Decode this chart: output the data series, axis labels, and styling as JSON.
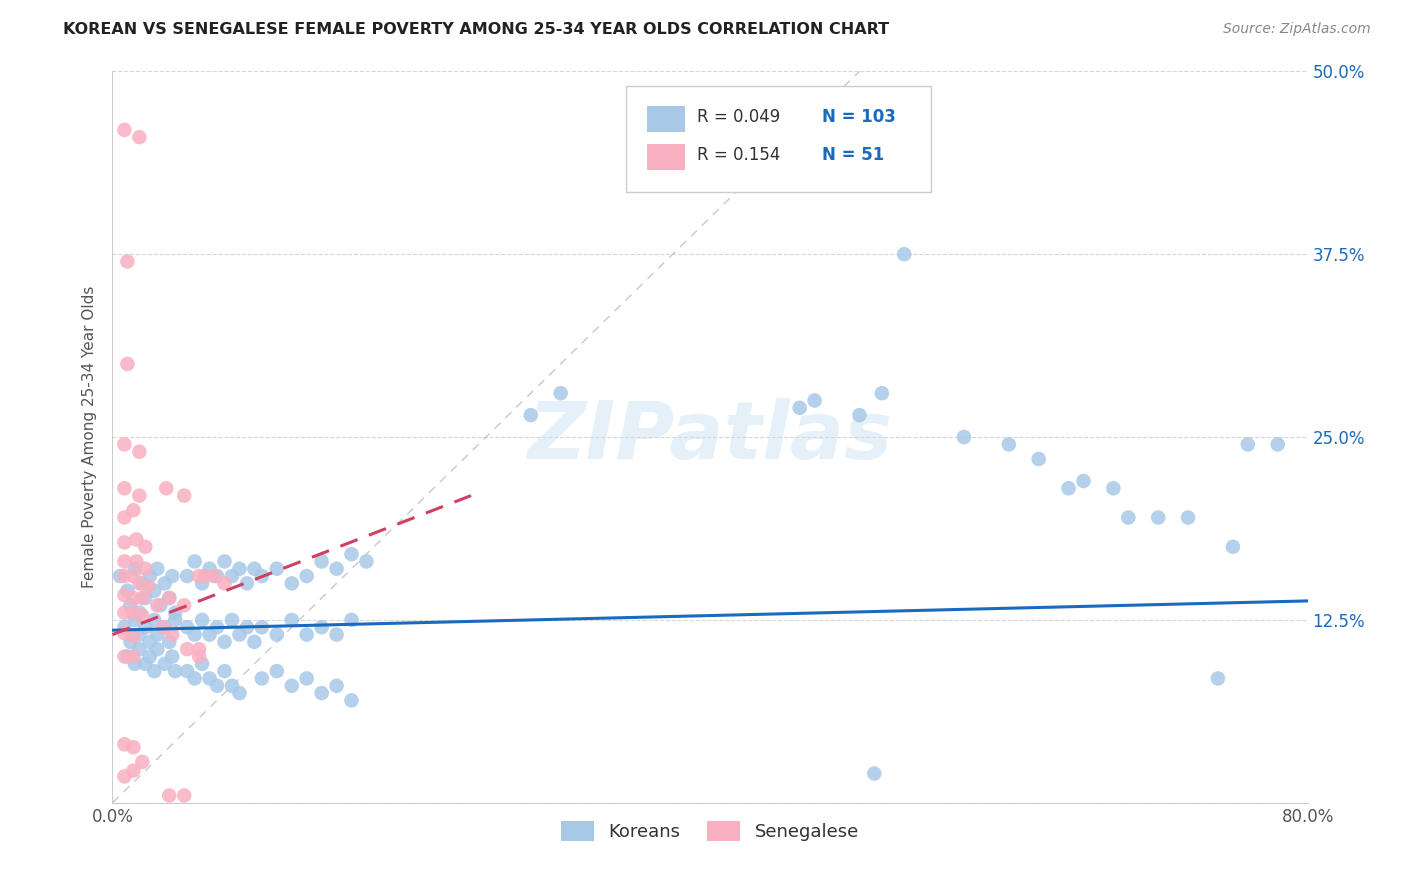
{
  "title": "KOREAN VS SENEGALESE FEMALE POVERTY AMONG 25-34 YEAR OLDS CORRELATION CHART",
  "source": "Source: ZipAtlas.com",
  "ylabel": "Female Poverty Among 25-34 Year Olds",
  "xlim": [
    0.0,
    0.8
  ],
  "ylim": [
    0.0,
    0.5
  ],
  "ytick_positions": [
    0.0,
    0.125,
    0.25,
    0.375,
    0.5
  ],
  "yticklabels_right": [
    "",
    "12.5%",
    "25.0%",
    "37.5%",
    "50.0%"
  ],
  "korean_R": "0.049",
  "korean_N": "103",
  "senegalese_R": "0.154",
  "senegalese_N": "51",
  "korean_color": "#a8c8e8",
  "senegalese_color": "#f8b0c0",
  "trendline_korean_color": "#1a6bbd",
  "trendline_senegalese_color": "#d04060",
  "legend_text_color": "#1a6bbd",
  "watermark": "ZIPatlas",
  "background_color": "#ffffff",
  "korean_scatter": [
    [
      0.005,
      0.155
    ],
    [
      0.01,
      0.145
    ],
    [
      0.012,
      0.135
    ],
    [
      0.015,
      0.16
    ],
    [
      0.018,
      0.13
    ],
    [
      0.02,
      0.15
    ],
    [
      0.022,
      0.14
    ],
    [
      0.025,
      0.155
    ],
    [
      0.028,
      0.145
    ],
    [
      0.03,
      0.16
    ],
    [
      0.032,
      0.135
    ],
    [
      0.035,
      0.15
    ],
    [
      0.038,
      0.14
    ],
    [
      0.04,
      0.155
    ],
    [
      0.042,
      0.13
    ],
    [
      0.008,
      0.12
    ],
    [
      0.012,
      0.11
    ],
    [
      0.015,
      0.125
    ],
    [
      0.018,
      0.115
    ],
    [
      0.022,
      0.12
    ],
    [
      0.025,
      0.11
    ],
    [
      0.028,
      0.125
    ],
    [
      0.03,
      0.115
    ],
    [
      0.035,
      0.12
    ],
    [
      0.038,
      0.11
    ],
    [
      0.042,
      0.125
    ],
    [
      0.01,
      0.1
    ],
    [
      0.015,
      0.095
    ],
    [
      0.018,
      0.105
    ],
    [
      0.022,
      0.095
    ],
    [
      0.025,
      0.1
    ],
    [
      0.028,
      0.09
    ],
    [
      0.03,
      0.105
    ],
    [
      0.035,
      0.095
    ],
    [
      0.04,
      0.1
    ],
    [
      0.042,
      0.09
    ],
    [
      0.05,
      0.155
    ],
    [
      0.055,
      0.165
    ],
    [
      0.06,
      0.15
    ],
    [
      0.065,
      0.16
    ],
    [
      0.07,
      0.155
    ],
    [
      0.075,
      0.165
    ],
    [
      0.08,
      0.155
    ],
    [
      0.085,
      0.16
    ],
    [
      0.09,
      0.15
    ],
    [
      0.095,
      0.16
    ],
    [
      0.05,
      0.12
    ],
    [
      0.055,
      0.115
    ],
    [
      0.06,
      0.125
    ],
    [
      0.065,
      0.115
    ],
    [
      0.07,
      0.12
    ],
    [
      0.075,
      0.11
    ],
    [
      0.08,
      0.125
    ],
    [
      0.085,
      0.115
    ],
    [
      0.09,
      0.12
    ],
    [
      0.095,
      0.11
    ],
    [
      0.05,
      0.09
    ],
    [
      0.055,
      0.085
    ],
    [
      0.06,
      0.095
    ],
    [
      0.065,
      0.085
    ],
    [
      0.07,
      0.08
    ],
    [
      0.075,
      0.09
    ],
    [
      0.08,
      0.08
    ],
    [
      0.085,
      0.075
    ],
    [
      0.1,
      0.155
    ],
    [
      0.11,
      0.16
    ],
    [
      0.12,
      0.15
    ],
    [
      0.13,
      0.155
    ],
    [
      0.14,
      0.165
    ],
    [
      0.15,
      0.16
    ],
    [
      0.16,
      0.17
    ],
    [
      0.17,
      0.165
    ],
    [
      0.1,
      0.12
    ],
    [
      0.11,
      0.115
    ],
    [
      0.12,
      0.125
    ],
    [
      0.13,
      0.115
    ],
    [
      0.14,
      0.12
    ],
    [
      0.15,
      0.115
    ],
    [
      0.16,
      0.125
    ],
    [
      0.1,
      0.085
    ],
    [
      0.11,
      0.09
    ],
    [
      0.12,
      0.08
    ],
    [
      0.13,
      0.085
    ],
    [
      0.14,
      0.075
    ],
    [
      0.15,
      0.08
    ],
    [
      0.16,
      0.07
    ],
    [
      0.28,
      0.265
    ],
    [
      0.3,
      0.28
    ],
    [
      0.47,
      0.275
    ],
    [
      0.46,
      0.27
    ],
    [
      0.53,
      0.375
    ],
    [
      0.515,
      0.28
    ],
    [
      0.5,
      0.265
    ],
    [
      0.57,
      0.25
    ],
    [
      0.6,
      0.245
    ],
    [
      0.62,
      0.235
    ],
    [
      0.64,
      0.215
    ],
    [
      0.65,
      0.22
    ],
    [
      0.67,
      0.215
    ],
    [
      0.68,
      0.195
    ],
    [
      0.7,
      0.195
    ],
    [
      0.72,
      0.195
    ],
    [
      0.75,
      0.175
    ],
    [
      0.76,
      0.245
    ],
    [
      0.78,
      0.245
    ],
    [
      0.74,
      0.085
    ],
    [
      0.51,
      0.02
    ]
  ],
  "senegalese_scatter": [
    [
      0.008,
      0.46
    ],
    [
      0.018,
      0.455
    ],
    [
      0.01,
      0.37
    ],
    [
      0.01,
      0.3
    ],
    [
      0.008,
      0.245
    ],
    [
      0.018,
      0.24
    ],
    [
      0.008,
      0.215
    ],
    [
      0.018,
      0.21
    ],
    [
      0.008,
      0.195
    ],
    [
      0.014,
      0.2
    ],
    [
      0.008,
      0.178
    ],
    [
      0.016,
      0.18
    ],
    [
      0.022,
      0.175
    ],
    [
      0.008,
      0.165
    ],
    [
      0.016,
      0.165
    ],
    [
      0.022,
      0.16
    ],
    [
      0.008,
      0.155
    ],
    [
      0.014,
      0.155
    ],
    [
      0.018,
      0.15
    ],
    [
      0.024,
      0.148
    ],
    [
      0.008,
      0.142
    ],
    [
      0.014,
      0.14
    ],
    [
      0.02,
      0.14
    ],
    [
      0.008,
      0.13
    ],
    [
      0.014,
      0.13
    ],
    [
      0.02,
      0.128
    ],
    [
      0.008,
      0.116
    ],
    [
      0.014,
      0.114
    ],
    [
      0.008,
      0.1
    ],
    [
      0.014,
      0.1
    ],
    [
      0.008,
      0.04
    ],
    [
      0.014,
      0.038
    ],
    [
      0.008,
      0.018
    ],
    [
      0.014,
      0.022
    ],
    [
      0.02,
      0.028
    ],
    [
      0.036,
      0.215
    ],
    [
      0.048,
      0.21
    ],
    [
      0.03,
      0.135
    ],
    [
      0.038,
      0.14
    ],
    [
      0.048,
      0.135
    ],
    [
      0.034,
      0.12
    ],
    [
      0.04,
      0.115
    ],
    [
      0.058,
      0.155
    ],
    [
      0.068,
      0.155
    ],
    [
      0.05,
      0.105
    ],
    [
      0.058,
      0.1
    ],
    [
      0.062,
      0.155
    ],
    [
      0.075,
      0.15
    ],
    [
      0.038,
      0.005
    ],
    [
      0.048,
      0.005
    ],
    [
      0.058,
      0.105
    ]
  ],
  "korean_trendline_x": [
    0.0,
    0.8
  ],
  "korean_trendline_y": [
    0.118,
    0.138
  ],
  "senegalese_trendline_x": [
    0.0,
    0.24
  ],
  "senegalese_trendline_y": [
    0.115,
    0.21
  ]
}
